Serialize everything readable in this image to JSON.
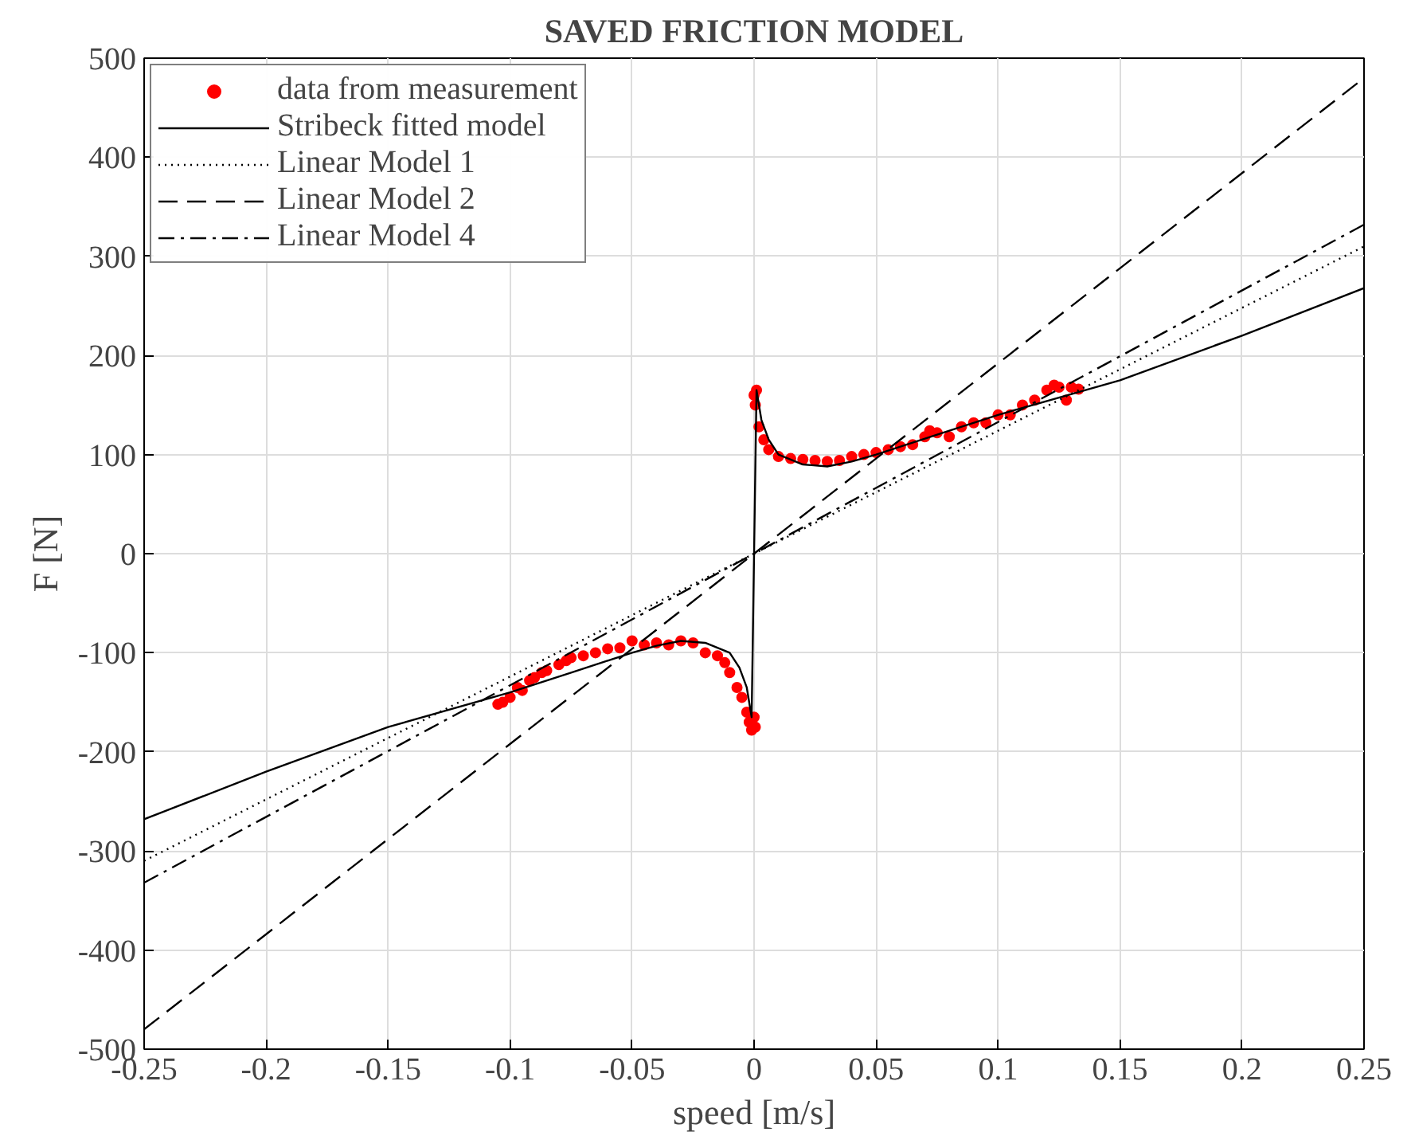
{
  "chart_data": {
    "type": "line",
    "title": "SAVED FRICTION MODEL",
    "xlabel": "speed [m/s]",
    "ylabel": "F [N]",
    "xlim": [
      -0.25,
      0.25
    ],
    "ylim": [
      -500,
      500
    ],
    "xticks": [
      -0.25,
      -0.2,
      -0.15,
      -0.1,
      -0.05,
      0,
      0.05,
      0.1,
      0.15,
      0.2,
      0.25
    ],
    "yticks": [
      -500,
      -400,
      -300,
      -200,
      -100,
      0,
      100,
      200,
      300,
      400,
      500
    ],
    "grid": true,
    "legend": "top left",
    "series": [
      {
        "name": "data from measurement",
        "type": "scatter",
        "marker": "circle",
        "color": "#ff0000",
        "x": [
          -0.105,
          -0.103,
          -0.1,
          -0.097,
          -0.095,
          -0.092,
          -0.09,
          -0.087,
          -0.085,
          -0.08,
          -0.077,
          -0.075,
          -0.07,
          -0.065,
          -0.06,
          -0.055,
          -0.05,
          -0.045,
          -0.04,
          -0.035,
          -0.03,
          -0.025,
          -0.02,
          -0.015,
          -0.012,
          -0.01,
          -0.007,
          -0.005,
          -0.003,
          -0.002,
          -0.001,
          0.0,
          0.0005,
          0.0,
          0.0005,
          0.001,
          0.002,
          0.004,
          0.006,
          0.01,
          0.015,
          0.02,
          0.025,
          0.03,
          0.035,
          0.04,
          0.045,
          0.05,
          0.055,
          0.06,
          0.065,
          0.07,
          0.072,
          0.075,
          0.08,
          0.085,
          0.09,
          0.095,
          0.1,
          0.105,
          0.11,
          0.115,
          0.12,
          0.123,
          0.125,
          0.128,
          0.13,
          0.133
        ],
        "values": [
          -152,
          -150,
          -145,
          -135,
          -138,
          -128,
          -125,
          -120,
          -118,
          -112,
          -108,
          -105,
          -103,
          -100,
          -96,
          -95,
          -88,
          -92,
          -90,
          -92,
          -88,
          -90,
          -100,
          -103,
          -110,
          -120,
          -135,
          -145,
          -160,
          -170,
          -178,
          -165,
          -175,
          160,
          150,
          165,
          128,
          115,
          105,
          98,
          96,
          95,
          94,
          93,
          94,
          98,
          100,
          102,
          105,
          108,
          110,
          118,
          124,
          122,
          118,
          128,
          132,
          132,
          140,
          140,
          150,
          155,
          165,
          170,
          168,
          155,
          168,
          166
        ]
      },
      {
        "name": "Stribeck fitted model",
        "line_style": "solid",
        "color": "#000000",
        "x": [
          -0.25,
          -0.2,
          -0.15,
          -0.1,
          -0.075,
          -0.05,
          -0.04,
          -0.03,
          -0.02,
          -0.01,
          -0.006,
          -0.003,
          -0.001,
          0.0,
          0.001,
          0.003,
          0.006,
          0.01,
          0.02,
          0.03,
          0.04,
          0.05,
          0.075,
          0.1,
          0.15,
          0.2,
          0.25
        ],
        "values": [
          -268,
          -220,
          -175,
          -140,
          -120,
          -100,
          -93,
          -88,
          -90,
          -100,
          -115,
          -135,
          -165,
          0,
          165,
          135,
          115,
          100,
          90,
          88,
          93,
          100,
          120,
          140,
          175,
          220,
          268
        ]
      },
      {
        "name": "Linear Model 1",
        "line_style": "dotted",
        "color": "#000000",
        "x": [
          -0.25,
          0.25
        ],
        "values": [
          -310,
          310
        ]
      },
      {
        "name": "Linear Model 2",
        "line_style": "dashed",
        "color": "#000000",
        "x": [
          -0.25,
          0.25
        ],
        "values": [
          -480,
          480
        ]
      },
      {
        "name": "Linear Model 4",
        "line_style": "dashdot",
        "color": "#000000",
        "x": [
          -0.25,
          0.25
        ],
        "values": [
          -332,
          332
        ]
      }
    ]
  }
}
